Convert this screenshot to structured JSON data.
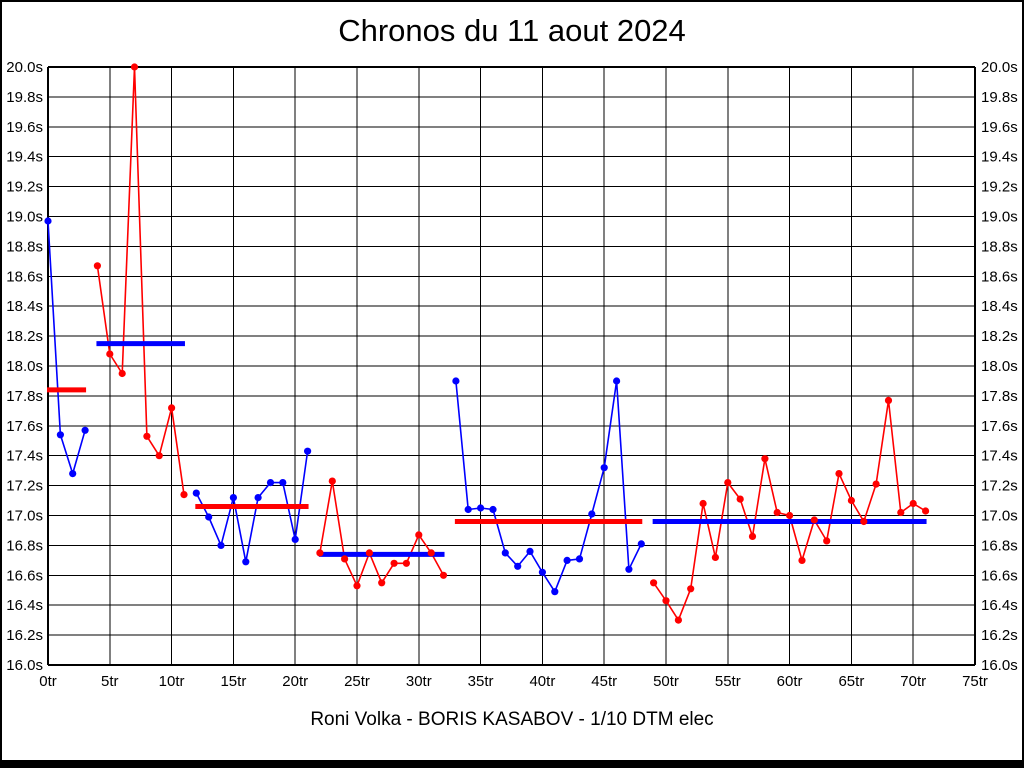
{
  "page": {
    "title": "Chronos du 11 aout 2024",
    "footer": "Roni Volka - BORIS KASABOV - 1/10 DTM elec"
  },
  "colors": {
    "blue": "#0000ff",
    "red": "#ff0000",
    "grid": "#000000",
    "text": "#000000",
    "background": "#ffffff"
  },
  "chart_data": {
    "type": "line",
    "title": "Chronos du 11 aout 2024",
    "x_unit": "tr",
    "y_unit": "s",
    "xlim": [
      0,
      75
    ],
    "ylim": [
      16.0,
      20.0
    ],
    "grid": true,
    "x_tick_labels": [
      "0tr",
      "5tr",
      "10tr",
      "15tr",
      "20tr",
      "25tr",
      "30tr",
      "35tr",
      "40tr",
      "45tr",
      "50tr",
      "55tr",
      "60tr",
      "65tr",
      "70tr",
      "75tr"
    ],
    "y_tick_labels": [
      "20.0s",
      "19.8s",
      "19.6s",
      "19.4s",
      "19.2s",
      "19.0s",
      "18.8s",
      "18.6s",
      "18.4s",
      "18.2s",
      "18.0s",
      "17.8s",
      "17.6s",
      "17.4s",
      "17.2s",
      "17.0s",
      "16.8s",
      "16.6s",
      "16.4s",
      "16.2s",
      "16.0s"
    ],
    "stints": [
      {
        "name": "stint-1",
        "color": "blue",
        "avg_color": "red",
        "start_lap": 0,
        "avg": 17.84,
        "values": [
          18.97,
          17.54,
          17.28,
          17.57
        ]
      },
      {
        "name": "stint-2",
        "color": "red",
        "avg_color": "blue",
        "start_lap": 4,
        "avg": 18.15,
        "values": [
          18.67,
          18.08,
          17.95,
          20.0,
          17.53,
          17.4,
          17.72,
          17.14
        ]
      },
      {
        "name": "stint-3",
        "color": "blue",
        "avg_color": "red",
        "start_lap": 12,
        "avg": 17.06,
        "values": [
          17.15,
          16.99,
          16.8,
          17.12,
          16.69,
          17.12,
          17.22,
          17.22,
          16.84,
          17.43
        ]
      },
      {
        "name": "stint-4",
        "color": "red",
        "avg_color": "blue",
        "start_lap": 22,
        "avg": 16.74,
        "values": [
          16.75,
          17.23,
          16.71,
          16.53,
          16.75,
          16.55,
          16.68,
          16.68,
          16.87,
          16.75,
          16.6
        ]
      },
      {
        "name": "stint-5",
        "color": "blue",
        "avg_color": "red",
        "start_lap": 33,
        "avg": 16.96,
        "values": [
          17.9,
          17.04,
          17.05,
          17.04,
          16.75,
          16.66,
          16.76,
          16.62,
          16.49,
          16.7,
          16.71,
          17.01,
          17.32,
          17.9,
          16.64,
          16.81
        ]
      },
      {
        "name": "stint-6",
        "color": "red",
        "avg_color": "blue",
        "start_lap": 49,
        "avg": 16.96,
        "values": [
          16.55,
          16.43,
          16.3,
          16.51,
          17.08,
          16.72,
          17.22,
          17.11,
          16.86,
          17.38,
          17.02,
          17.0,
          16.7,
          16.97,
          16.83,
          17.28,
          17.1,
          16.96,
          17.21,
          17.77,
          17.02,
          17.08,
          17.03
        ]
      }
    ]
  }
}
